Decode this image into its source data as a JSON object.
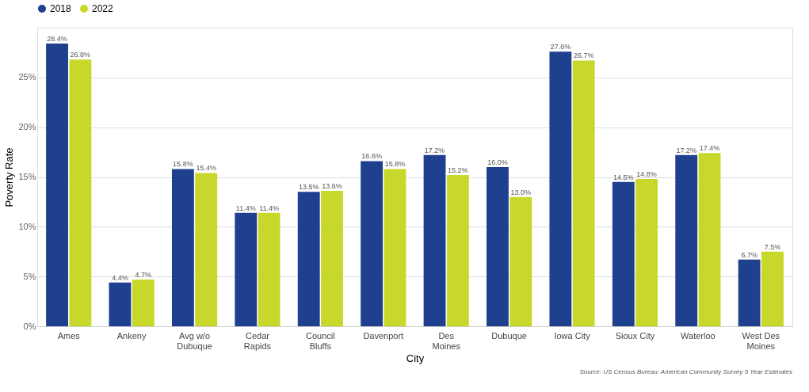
{
  "chart_data": {
    "type": "bar",
    "xlabel": "City",
    "ylabel": "Poverty Rate",
    "categories": [
      "Ames",
      "Ankeny",
      "Avg w/o\nDubuque",
      "Cedar\nRapids",
      "Council\nBluffs",
      "Davenport",
      "Des\nMoines",
      "Dubuque",
      "Iowa City",
      "Sioux City",
      "Waterloo",
      "West Des\nMoines"
    ],
    "series": [
      {
        "name": "2018",
        "color": "#1f3f8f",
        "values": [
          28.4,
          4.4,
          15.8,
          11.4,
          13.5,
          16.6,
          17.2,
          16.0,
          27.6,
          14.5,
          17.2,
          6.7
        ],
        "value_labels": [
          "28.4%",
          "4.4%",
          "15.8%",
          "11.4%",
          "13.5%",
          "16.6%",
          "17.2%",
          "16.0%",
          "27.6%",
          "14.5%",
          "17.2%",
          "6.7%"
        ]
      },
      {
        "name": "2022",
        "color": "#c8d82a",
        "values": [
          26.8,
          4.7,
          15.4,
          11.4,
          13.6,
          15.8,
          15.2,
          13.0,
          26.7,
          14.8,
          17.4,
          7.5
        ],
        "value_labels": [
          "26.8%",
          "4.7%",
          "15.4%",
          "11.4%",
          "13.6%",
          "15.8%",
          "15.2%",
          "13.0%",
          "26.7%",
          "14.8%",
          "17.4%",
          "7.5%"
        ]
      }
    ],
    "ylim": [
      0,
      30
    ],
    "yticks": [
      {
        "value": 0,
        "label": "0%"
      },
      {
        "value": 5,
        "label": "5%"
      },
      {
        "value": 10,
        "label": "10%"
      },
      {
        "value": 15,
        "label": "15%"
      },
      {
        "value": 20,
        "label": "20%"
      },
      {
        "value": 25,
        "label": "25%"
      }
    ],
    "grid": "y",
    "legend": "top",
    "annotations": [
      "Source: US Census Bureau: American Community Survey 5 Year Estimates"
    ]
  }
}
